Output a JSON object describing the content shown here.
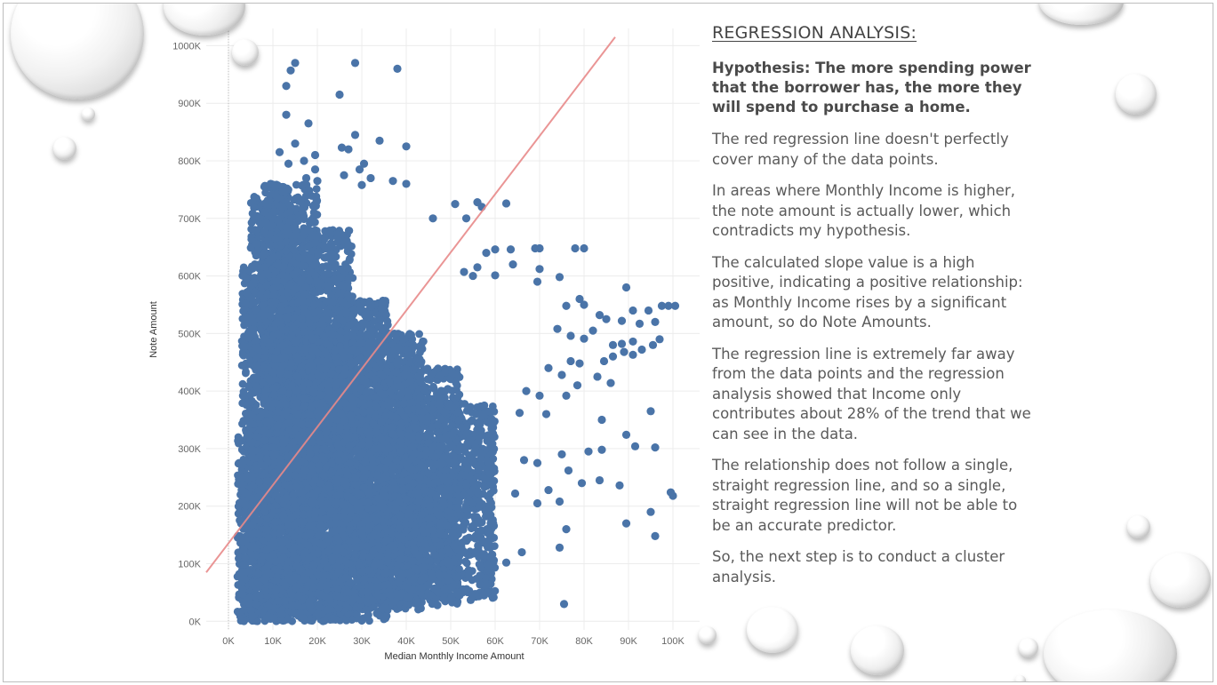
{
  "chart_data": {
    "type": "scatter",
    "xlabel": "Median Monthly Income Amount",
    "ylabel": "Note Amount",
    "xlim": [
      -5000,
      106000
    ],
    "ylim": [
      -15000,
      1030000
    ],
    "x_ticks": [
      0,
      10000,
      20000,
      30000,
      40000,
      50000,
      60000,
      70000,
      80000,
      90000,
      100000
    ],
    "x_tick_labels": [
      "0K",
      "10K",
      "20K",
      "30K",
      "40K",
      "50K",
      "60K",
      "70K",
      "80K",
      "90K",
      "100K"
    ],
    "y_ticks": [
      0,
      100000,
      200000,
      300000,
      400000,
      500000,
      600000,
      700000,
      800000,
      900000,
      1000000
    ],
    "y_tick_labels": [
      "0K",
      "100K",
      "200K",
      "300K",
      "400K",
      "500K",
      "600K",
      "700K",
      "800K",
      "900K",
      "1000K"
    ],
    "grid": true,
    "point_color": "#4a74a8",
    "regression_color": "#e8898a",
    "regression_line": {
      "x": [
        -5000,
        87000
      ],
      "y": [
        85000,
        1015000
      ]
    },
    "points": [
      [
        15000,
        970000
      ],
      [
        28500,
        970000
      ],
      [
        38000,
        960000
      ],
      [
        14000,
        957000
      ],
      [
        13000,
        930000
      ],
      [
        25000,
        915000
      ],
      [
        13000,
        880000
      ],
      [
        18000,
        865000
      ],
      [
        28500,
        845000
      ],
      [
        34000,
        835000
      ],
      [
        40000,
        825000
      ],
      [
        15000,
        830000
      ],
      [
        25500,
        823000
      ],
      [
        27000,
        820000
      ],
      [
        11500,
        815000
      ],
      [
        19500,
        810000
      ],
      [
        17000,
        800000
      ],
      [
        13500,
        795000
      ],
      [
        30500,
        795000
      ],
      [
        29500,
        785000
      ],
      [
        19500,
        785000
      ],
      [
        26000,
        775000
      ],
      [
        17500,
        770000
      ],
      [
        20000,
        765000
      ],
      [
        32000,
        770000
      ],
      [
        9500,
        760000
      ],
      [
        37000,
        765000
      ],
      [
        40000,
        760000
      ],
      [
        30000,
        758000
      ],
      [
        51000,
        725000
      ],
      [
        56000,
        728000
      ],
      [
        62500,
        726000
      ],
      [
        53500,
        700000
      ],
      [
        57000,
        720000
      ],
      [
        46000,
        700000
      ],
      [
        69000,
        648000
      ],
      [
        70000,
        648000
      ],
      [
        78000,
        648000
      ],
      [
        80000,
        648000
      ],
      [
        63500,
        646000
      ],
      [
        60000,
        646000
      ],
      [
        58000,
        640000
      ],
      [
        64000,
        620000
      ],
      [
        56000,
        615000
      ],
      [
        70000,
        612000
      ],
      [
        74500,
        598000
      ],
      [
        69500,
        590000
      ],
      [
        55000,
        600000
      ],
      [
        53000,
        607000
      ],
      [
        60000,
        601000
      ],
      [
        89500,
        580000
      ],
      [
        79000,
        560000
      ],
      [
        80000,
        550000
      ],
      [
        76000,
        548000
      ],
      [
        91000,
        540000
      ],
      [
        94500,
        540000
      ],
      [
        97500,
        548000
      ],
      [
        99000,
        548000
      ],
      [
        100500,
        548000
      ],
      [
        83500,
        532000
      ],
      [
        85000,
        525000
      ],
      [
        88500,
        522000
      ],
      [
        92500,
        517000
      ],
      [
        96000,
        520000
      ],
      [
        82000,
        505000
      ],
      [
        74000,
        508000
      ],
      [
        77000,
        496000
      ],
      [
        80000,
        491000
      ],
      [
        86500,
        480000
      ],
      [
        88500,
        482000
      ],
      [
        91000,
        486000
      ],
      [
        93000,
        472000
      ],
      [
        95500,
        480000
      ],
      [
        97000,
        490000
      ],
      [
        91000,
        463000
      ],
      [
        89000,
        468000
      ],
      [
        86500,
        460000
      ],
      [
        84500,
        452000
      ],
      [
        77000,
        452000
      ],
      [
        79000,
        448000
      ],
      [
        72000,
        440000
      ],
      [
        75000,
        428000
      ],
      [
        83000,
        425000
      ],
      [
        86000,
        414000
      ],
      [
        78500,
        410000
      ],
      [
        76000,
        392000
      ],
      [
        67000,
        400000
      ],
      [
        70000,
        392000
      ],
      [
        71500,
        360000
      ],
      [
        65500,
        362000
      ],
      [
        84000,
        350000
      ],
      [
        95000,
        365000
      ],
      [
        89500,
        324000
      ],
      [
        91500,
        304000
      ],
      [
        96000,
        302000
      ],
      [
        84000,
        298000
      ],
      [
        81000,
        295000
      ],
      [
        75000,
        290000
      ],
      [
        66500,
        280000
      ],
      [
        69500,
        275000
      ],
      [
        76500,
        262000
      ],
      [
        83500,
        245000
      ],
      [
        79500,
        240000
      ],
      [
        88000,
        236000
      ],
      [
        72000,
        228000
      ],
      [
        64500,
        222000
      ],
      [
        69500,
        205000
      ],
      [
        74500,
        208000
      ],
      [
        99500,
        224000
      ],
      [
        100000,
        218000
      ],
      [
        95000,
        190000
      ],
      [
        89500,
        170000
      ],
      [
        96000,
        148000
      ],
      [
        76000,
        160000
      ],
      [
        74500,
        128000
      ],
      [
        66000,
        120000
      ],
      [
        59000,
        112000
      ],
      [
        62500,
        102000
      ],
      [
        58500,
        97000
      ],
      [
        57500,
        45000
      ],
      [
        75500,
        30000
      ],
      [
        47000,
        28000
      ],
      [
        54500,
        37000
      ],
      [
        51500,
        50000
      ],
      [
        47500,
        80000
      ],
      [
        43500,
        72000
      ],
      [
        41500,
        55000
      ],
      [
        39000,
        48000
      ],
      [
        36500,
        45000
      ]
    ],
    "dense_regions": [
      {
        "x": [
          2000,
          6000
        ],
        "y": [
          0,
          330000
        ]
      },
      {
        "x": [
          3000,
          10000
        ],
        "y": [
          0,
          620000
        ]
      },
      {
        "x": [
          5000,
          14000
        ],
        "y": [
          0,
          740000
        ]
      },
      {
        "x": [
          8000,
          20000
        ],
        "y": [
          0,
          760000
        ]
      },
      {
        "x": [
          10000,
          28000
        ],
        "y": [
          0,
          680000
        ]
      },
      {
        "x": [
          14000,
          36000
        ],
        "y": [
          0,
          560000
        ]
      },
      {
        "x": [
          18000,
          44000
        ],
        "y": [
          20000,
          500000
        ]
      },
      {
        "x": [
          24000,
          52000
        ],
        "y": [
          30000,
          440000
        ]
      },
      {
        "x": [
          30000,
          60000
        ],
        "y": [
          40000,
          380000
        ]
      }
    ]
  },
  "text_panel": {
    "heading": "REGRESSION ANALYSIS:",
    "hypothesis": "Hypothesis:  The more spending power that the borrower has, the more they will spend to purchase a home.",
    "paragraphs": [
      "The red regression line doesn't perfectly cover many of the data points.",
      "In areas where Monthly Income is higher, the note amount is actually lower, which contradicts my hypothesis.",
      "The calculated slope value is a high positive, indicating a positive relationship:  as Monthly Income rises by a significant amount, so do Note Amounts.",
      "The regression line is extremely far away from the data points and the regression analysis showed that Income only contributes about 28% of the trend that we can see in the data.",
      "The relationship does not follow a single, straight regression line, and so a single, straight regression line will not be able to be an accurate predictor.",
      "So, the next step is to conduct a cluster analysis."
    ]
  }
}
